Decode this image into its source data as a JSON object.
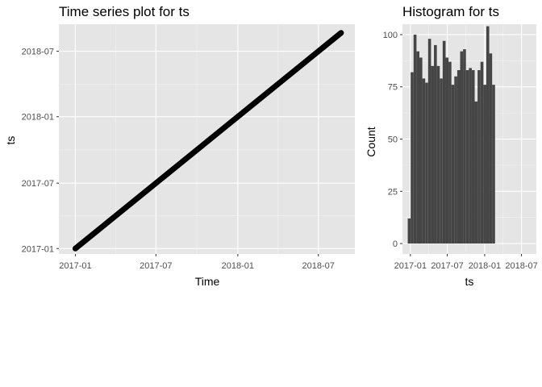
{
  "chart_data": [
    {
      "type": "line",
      "title": "Time series plot for ts",
      "xlabel": "Time",
      "ylabel": "ts",
      "x_ticks": [
        "2017-01",
        "2017-07",
        "2018-01",
        "2018-07"
      ],
      "y_ticks": [
        "2017-01",
        "2017-07",
        "2018-01",
        "2018-07"
      ],
      "xlim": [
        "2016-11-25",
        "2018-09-21"
      ],
      "ylim": [
        "2016-12-17",
        "2018-09-14"
      ],
      "series": [
        {
          "x": [
            "2017-01-01",
            "2018-08-21"
          ],
          "y": [
            "2017-01-01",
            "2018-08-21"
          ]
        }
      ],
      "grid": true,
      "background": "#e5e5e5",
      "mark_color": "#000000"
    },
    {
      "type": "bar",
      "title": "Histogram for ts",
      "xlabel": "ts",
      "ylabel": "Count",
      "x_ticks": [
        "2017-01",
        "2017-07",
        "2018-01",
        "2018-07"
      ],
      "y_ticks": [
        "0",
        "25",
        "50",
        "75",
        "100"
      ],
      "xlim": [
        "2016-11-23",
        "2018-09-12"
      ],
      "ylim": [
        -5,
        105
      ],
      "bin_start": "2016-12-19",
      "bin_width_days": 14.3,
      "values": [
        12,
        82,
        100,
        92,
        89,
        79,
        77,
        98,
        85,
        95,
        85,
        79,
        97,
        89,
        87,
        76,
        80,
        83,
        92,
        93,
        83,
        84,
        83,
        68,
        83,
        87,
        76,
        104,
        91,
        76
      ],
      "grid": true,
      "background": "#e5e5e5",
      "bar_color": "#454545"
    }
  ]
}
